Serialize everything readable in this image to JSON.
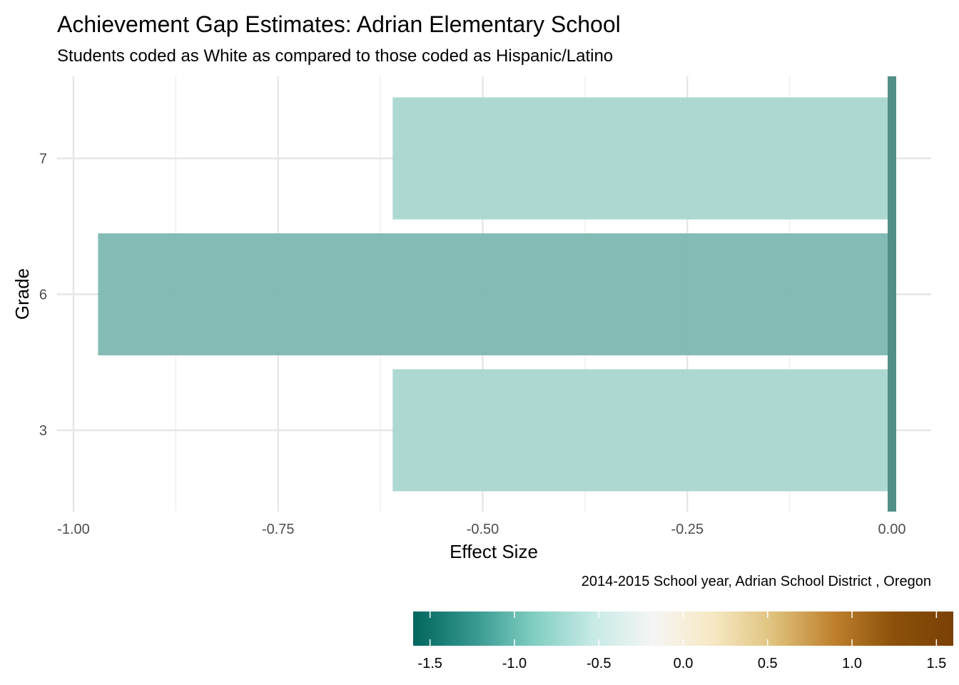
{
  "chart_data": {
    "type": "bar",
    "orientation": "horizontal",
    "title": "Achievement Gap Estimates: Adrian Elementary School",
    "subtitle": "Students coded as White as compared to those coded as Hispanic/Latino",
    "xlabel": "Effect Size",
    "ylabel": "Grade",
    "caption": "2014-2015 School year,  Adrian School District , Oregon",
    "categories": [
      "3",
      "6",
      "7"
    ],
    "values": [
      -0.61,
      -0.97,
      -0.61
    ],
    "bar_colors": [
      "#a9d6d0",
      "#7db8b1",
      "#a9d6d0"
    ],
    "xlim": [
      -1.0,
      0.0
    ],
    "xticks": [
      -1.0,
      -0.75,
      -0.5,
      -0.25,
      0.0
    ],
    "xtick_labels": [
      "-1.00",
      "-0.75",
      "-0.50",
      "-0.25",
      "0.00"
    ],
    "reference_line": {
      "x": 0.0,
      "color": "#528f85"
    },
    "grid": true,
    "legend": {
      "type": "colorbar",
      "placement": "bottom-right",
      "range": [
        -1.6,
        1.6
      ],
      "ticks": [
        -1.5,
        -1.0,
        -0.5,
        0.0,
        0.5,
        1.0,
        1.5
      ],
      "tick_labels": [
        "-1.5",
        "-1.0",
        "-0.5",
        "0.0",
        "0.5",
        "1.0",
        "1.5"
      ],
      "colors": [
        "#01665e",
        "#35978f",
        "#80cdc1",
        "#c7eae5",
        "#f5f5f5",
        "#f6e8c3",
        "#dfc27d",
        "#bf812d",
        "#8c510a",
        "#7a4006"
      ]
    }
  }
}
